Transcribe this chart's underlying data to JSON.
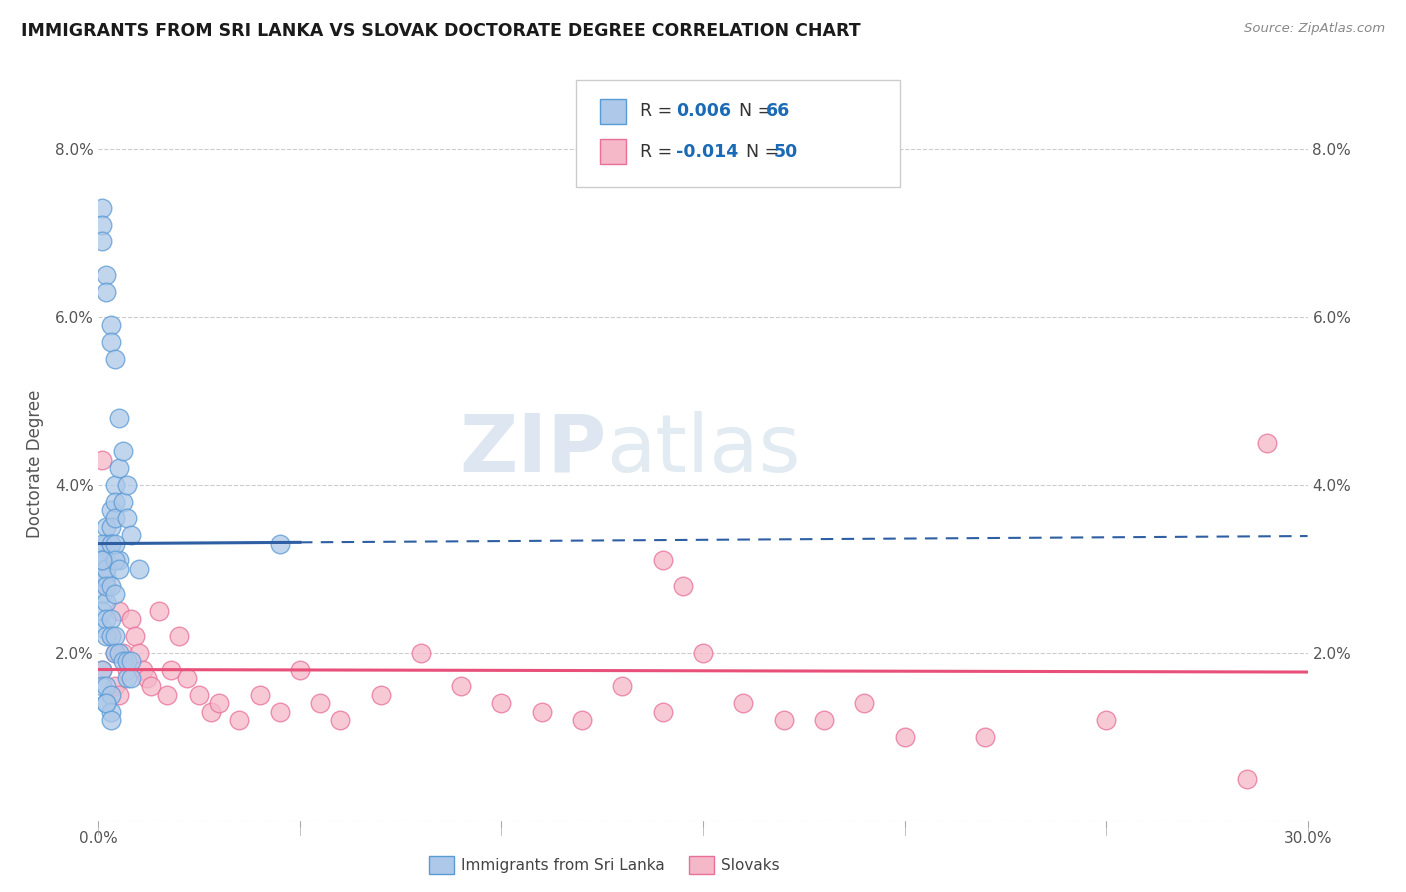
{
  "title": "IMMIGRANTS FROM SRI LANKA VS SLOVAK DOCTORATE DEGREE CORRELATION CHART",
  "source_text": "Source: ZipAtlas.com",
  "ylabel": "Doctorate Degree",
  "xlim": [
    0.0,
    0.3
  ],
  "ylim": [
    0.0,
    0.085
  ],
  "xticks": [
    0.0,
    0.05,
    0.1,
    0.15,
    0.2,
    0.25,
    0.3
  ],
  "xticklabels": [
    "0.0%",
    "",
    "",
    "",
    "",
    "",
    "30.0%"
  ],
  "yticks_left": [
    0.0,
    0.02,
    0.04,
    0.06,
    0.08
  ],
  "yticklabels_left": [
    "",
    "2.0%",
    "4.0%",
    "6.0%",
    "8.0%"
  ],
  "yticks_right": [
    0.02,
    0.04,
    0.06,
    0.08
  ],
  "yticklabels_right": [
    "2.0%",
    "4.0%",
    "6.0%",
    "8.0%"
  ],
  "color_blue": "#adc8e8",
  "color_blue_edge": "#5b9bd5",
  "color_blue_line": "#2e5fa3",
  "color_pink": "#f4b8c8",
  "color_pink_edge": "#e8709a",
  "color_pink_line": "#e8507a",
  "legend_label1": "Immigrants from Sri Lanka",
  "legend_label2": "Slovaks",
  "watermark_zip": "ZIP",
  "watermark_atlas": "atlas",
  "blue_line_solid_end": 0.05,
  "blue_line_intercept": 0.033,
  "blue_line_slope": 0.003,
  "pink_line_intercept": 0.018,
  "pink_line_slope": -0.001,
  "sri_lanka_x": [
    0.001,
    0.001,
    0.001,
    0.001,
    0.001,
    0.002,
    0.002,
    0.002,
    0.002,
    0.002,
    0.002,
    0.003,
    0.003,
    0.003,
    0.003,
    0.003,
    0.004,
    0.004,
    0.004,
    0.004,
    0.005,
    0.005,
    0.005,
    0.006,
    0.006,
    0.007,
    0.007,
    0.008,
    0.01,
    0.001,
    0.001,
    0.001,
    0.002,
    0.002,
    0.002,
    0.003,
    0.003,
    0.004,
    0.004,
    0.005,
    0.006,
    0.007,
    0.007,
    0.008,
    0.008,
    0.001,
    0.001,
    0.002,
    0.002,
    0.003,
    0.004,
    0.001,
    0.001,
    0.002,
    0.002,
    0.003,
    0.003,
    0.003,
    0.004,
    0.004,
    0.005,
    0.045,
    0.001,
    0.002,
    0.003
  ],
  "sri_lanka_y": [
    0.073,
    0.071,
    0.069,
    0.031,
    0.029,
    0.065,
    0.063,
    0.035,
    0.033,
    0.031,
    0.029,
    0.059,
    0.057,
    0.037,
    0.035,
    0.033,
    0.055,
    0.04,
    0.038,
    0.036,
    0.048,
    0.042,
    0.031,
    0.044,
    0.038,
    0.04,
    0.036,
    0.034,
    0.03,
    0.027,
    0.025,
    0.023,
    0.026,
    0.024,
    0.022,
    0.024,
    0.022,
    0.022,
    0.02,
    0.02,
    0.019,
    0.019,
    0.017,
    0.019,
    0.017,
    0.033,
    0.031,
    0.03,
    0.028,
    0.028,
    0.027,
    0.018,
    0.016,
    0.016,
    0.014,
    0.015,
    0.013,
    0.033,
    0.033,
    0.031,
    0.03,
    0.033,
    0.031,
    0.014,
    0.012
  ],
  "slovak_x": [
    0.001,
    0.001,
    0.002,
    0.003,
    0.004,
    0.004,
    0.005,
    0.005,
    0.006,
    0.007,
    0.008,
    0.009,
    0.01,
    0.011,
    0.012,
    0.013,
    0.015,
    0.017,
    0.018,
    0.02,
    0.022,
    0.025,
    0.028,
    0.03,
    0.035,
    0.04,
    0.045,
    0.05,
    0.055,
    0.06,
    0.07,
    0.08,
    0.09,
    0.1,
    0.11,
    0.12,
    0.13,
    0.14,
    0.15,
    0.16,
    0.17,
    0.18,
    0.19,
    0.2,
    0.14,
    0.145,
    0.22,
    0.25,
    0.285,
    0.29
  ],
  "slovak_y": [
    0.043,
    0.018,
    0.028,
    0.022,
    0.02,
    0.016,
    0.025,
    0.015,
    0.02,
    0.018,
    0.024,
    0.022,
    0.02,
    0.018,
    0.017,
    0.016,
    0.025,
    0.015,
    0.018,
    0.022,
    0.017,
    0.015,
    0.013,
    0.014,
    0.012,
    0.015,
    0.013,
    0.018,
    0.014,
    0.012,
    0.015,
    0.02,
    0.016,
    0.014,
    0.013,
    0.012,
    0.016,
    0.013,
    0.02,
    0.014,
    0.012,
    0.012,
    0.014,
    0.01,
    0.031,
    0.028,
    0.01,
    0.012,
    0.005,
    0.045
  ]
}
